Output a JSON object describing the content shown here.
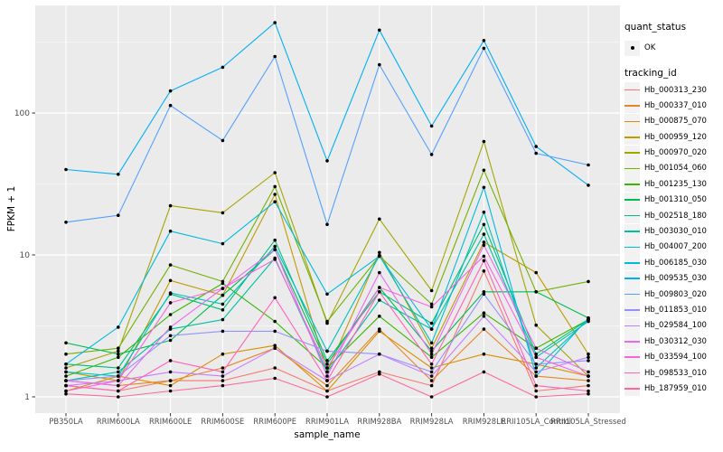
{
  "chart_data": {
    "type": "line",
    "title": "",
    "xlabel": "sample_name",
    "ylabel": "FPKM + 1",
    "y_scale": "log10",
    "y_ticks": [
      1,
      10,
      100
    ],
    "y_minor_gridlines": [
      3.162,
      31.62,
      316.2
    ],
    "ylim": [
      0.95,
      500
    ],
    "grid": true,
    "panel_bg": "#EBEBEB",
    "gridline_color": "#FFFFFF",
    "tick_label_color": "#4D4D4D",
    "point_color": "#000000",
    "legend_position": "right",
    "categories": [
      "PB350LA",
      "RRIM600LA",
      "RRIM600LE",
      "RRIM600SE",
      "RRIM600PE",
      "RRIM901LA",
      "RRIM928BA",
      "RRIM928LA",
      "RRIM928LE",
      "RRII105LA_Control",
      "RRII105LA_Stressed"
    ],
    "legend": {
      "quant_status_title": "quant_status",
      "quant_status_items": [
        {
          "label": "OK",
          "marker": "point",
          "color": "#000000"
        }
      ],
      "tracking_title": "tracking_id"
    },
    "series": [
      {
        "name": "Hb_000313_230",
        "color": "#F8766D",
        "values": [
          1.2,
          1.1,
          1.3,
          1.3,
          1.6,
          1.1,
          1.5,
          1.2,
          7.7,
          1.1,
          1.2
        ]
      },
      {
        "name": "Hb_000337_010",
        "color": "#E88526",
        "values": [
          1.3,
          1.2,
          1.3,
          1.6,
          2.2,
          1.2,
          3.0,
          1.3,
          3.0,
          1.4,
          1.3
        ]
      },
      {
        "name": "Hb_000875_070",
        "color": "#D89000",
        "values": [
          1.1,
          1.4,
          1.2,
          2.0,
          2.3,
          1.1,
          2.9,
          1.6,
          2.0,
          1.7,
          1.4
        ]
      },
      {
        "name": "Hb_000959_120",
        "color": "#C09B00",
        "values": [
          1.5,
          1.3,
          6.6,
          5.2,
          26.7,
          1.5,
          10.4,
          2.2,
          12.3,
          7.5,
          2.0
        ]
      },
      {
        "name": "Hb_000970_020",
        "color": "#A4A500",
        "values": [
          1.6,
          2.1,
          22.2,
          19.8,
          38.0,
          3.3,
          17.9,
          5.6,
          63.0,
          3.2,
          1.4
        ]
      },
      {
        "name": "Hb_001054_060",
        "color": "#72B000",
        "values": [
          2.0,
          2.2,
          8.5,
          6.5,
          30.3,
          3.4,
          9.8,
          4.5,
          39.5,
          5.5,
          6.5
        ]
      },
      {
        "name": "Hb_001235_130",
        "color": "#39B600",
        "values": [
          1.4,
          1.9,
          3.8,
          6.3,
          3.4,
          1.6,
          3.7,
          1.9,
          3.9,
          2.2,
          3.5
        ]
      },
      {
        "name": "Hb_001310_050",
        "color": "#00BC51",
        "values": [
          2.4,
          2.0,
          2.5,
          5.2,
          10.9,
          1.7,
          5.9,
          2.1,
          5.5,
          5.5,
          3.6
        ]
      },
      {
        "name": "Hb_002518_180",
        "color": "#00C078",
        "values": [
          1.7,
          1.6,
          5.3,
          4.1,
          12.7,
          1.8,
          5.5,
          3.3,
          16.4,
          2.0,
          3.5
        ]
      },
      {
        "name": "Hb_003030_010",
        "color": "#00C19E",
        "values": [
          1.3,
          1.5,
          3.0,
          3.5,
          9.5,
          1.5,
          4.8,
          3.0,
          14.0,
          1.9,
          3.4
        ]
      },
      {
        "name": "Hb_004007_200",
        "color": "#00BFC0",
        "values": [
          1.5,
          1.4,
          5.4,
          4.5,
          11.5,
          2.1,
          9.9,
          2.4,
          20.0,
          1.6,
          3.5
        ]
      },
      {
        "name": "Hb_006185_030",
        "color": "#00BADE",
        "values": [
          1.7,
          3.1,
          14.7,
          12.0,
          23.7,
          5.3,
          9.8,
          3.0,
          29.9,
          1.4,
          3.6
        ]
      },
      {
        "name": "Hb_009535_030",
        "color": "#00AFF6",
        "values": [
          40,
          37,
          143,
          210,
          433,
          46,
          384,
          81,
          324,
          58,
          31
        ]
      },
      {
        "name": "Hb_009803_020",
        "color": "#559FFF",
        "values": [
          17,
          19,
          113,
          64,
          250,
          16.4,
          219,
          51,
          286,
          52,
          43
        ]
      },
      {
        "name": "Hb_011853_010",
        "color": "#9491FF",
        "values": [
          1.3,
          1.4,
          2.7,
          2.9,
          2.9,
          2.1,
          2.0,
          1.5,
          5.3,
          1.7,
          1.8
        ]
      },
      {
        "name": "Hb_029584_100",
        "color": "#C77DFF",
        "values": [
          1.2,
          1.3,
          1.5,
          1.4,
          2.2,
          1.3,
          2.0,
          1.4,
          3.7,
          1.5,
          1.9
        ]
      },
      {
        "name": "Hb_030312_030",
        "color": "#E76AF3",
        "values": [
          1.3,
          1.2,
          3.1,
          5.8,
          10.9,
          1.4,
          7.5,
          2.0,
          11.7,
          2.2,
          1.5
        ]
      },
      {
        "name": "Hb_033594_100",
        "color": "#F863DF",
        "values": [
          1.1,
          1.3,
          4.6,
          5.8,
          9.3,
          1.6,
          5.9,
          4.3,
          9.8,
          1.9,
          1.4
        ]
      },
      {
        "name": "Hb_098533_010",
        "color": "#FF61BB",
        "values": [
          1.2,
          1.1,
          1.8,
          1.5,
          5.0,
          1.3,
          5.5,
          1.7,
          9.1,
          1.2,
          1.1
        ]
      },
      {
        "name": "Hb_187959_010",
        "color": "#FF689B",
        "values": [
          1.05,
          1.0,
          1.1,
          1.2,
          1.35,
          1.0,
          1.45,
          1.0,
          1.5,
          1.0,
          1.05
        ]
      }
    ]
  }
}
